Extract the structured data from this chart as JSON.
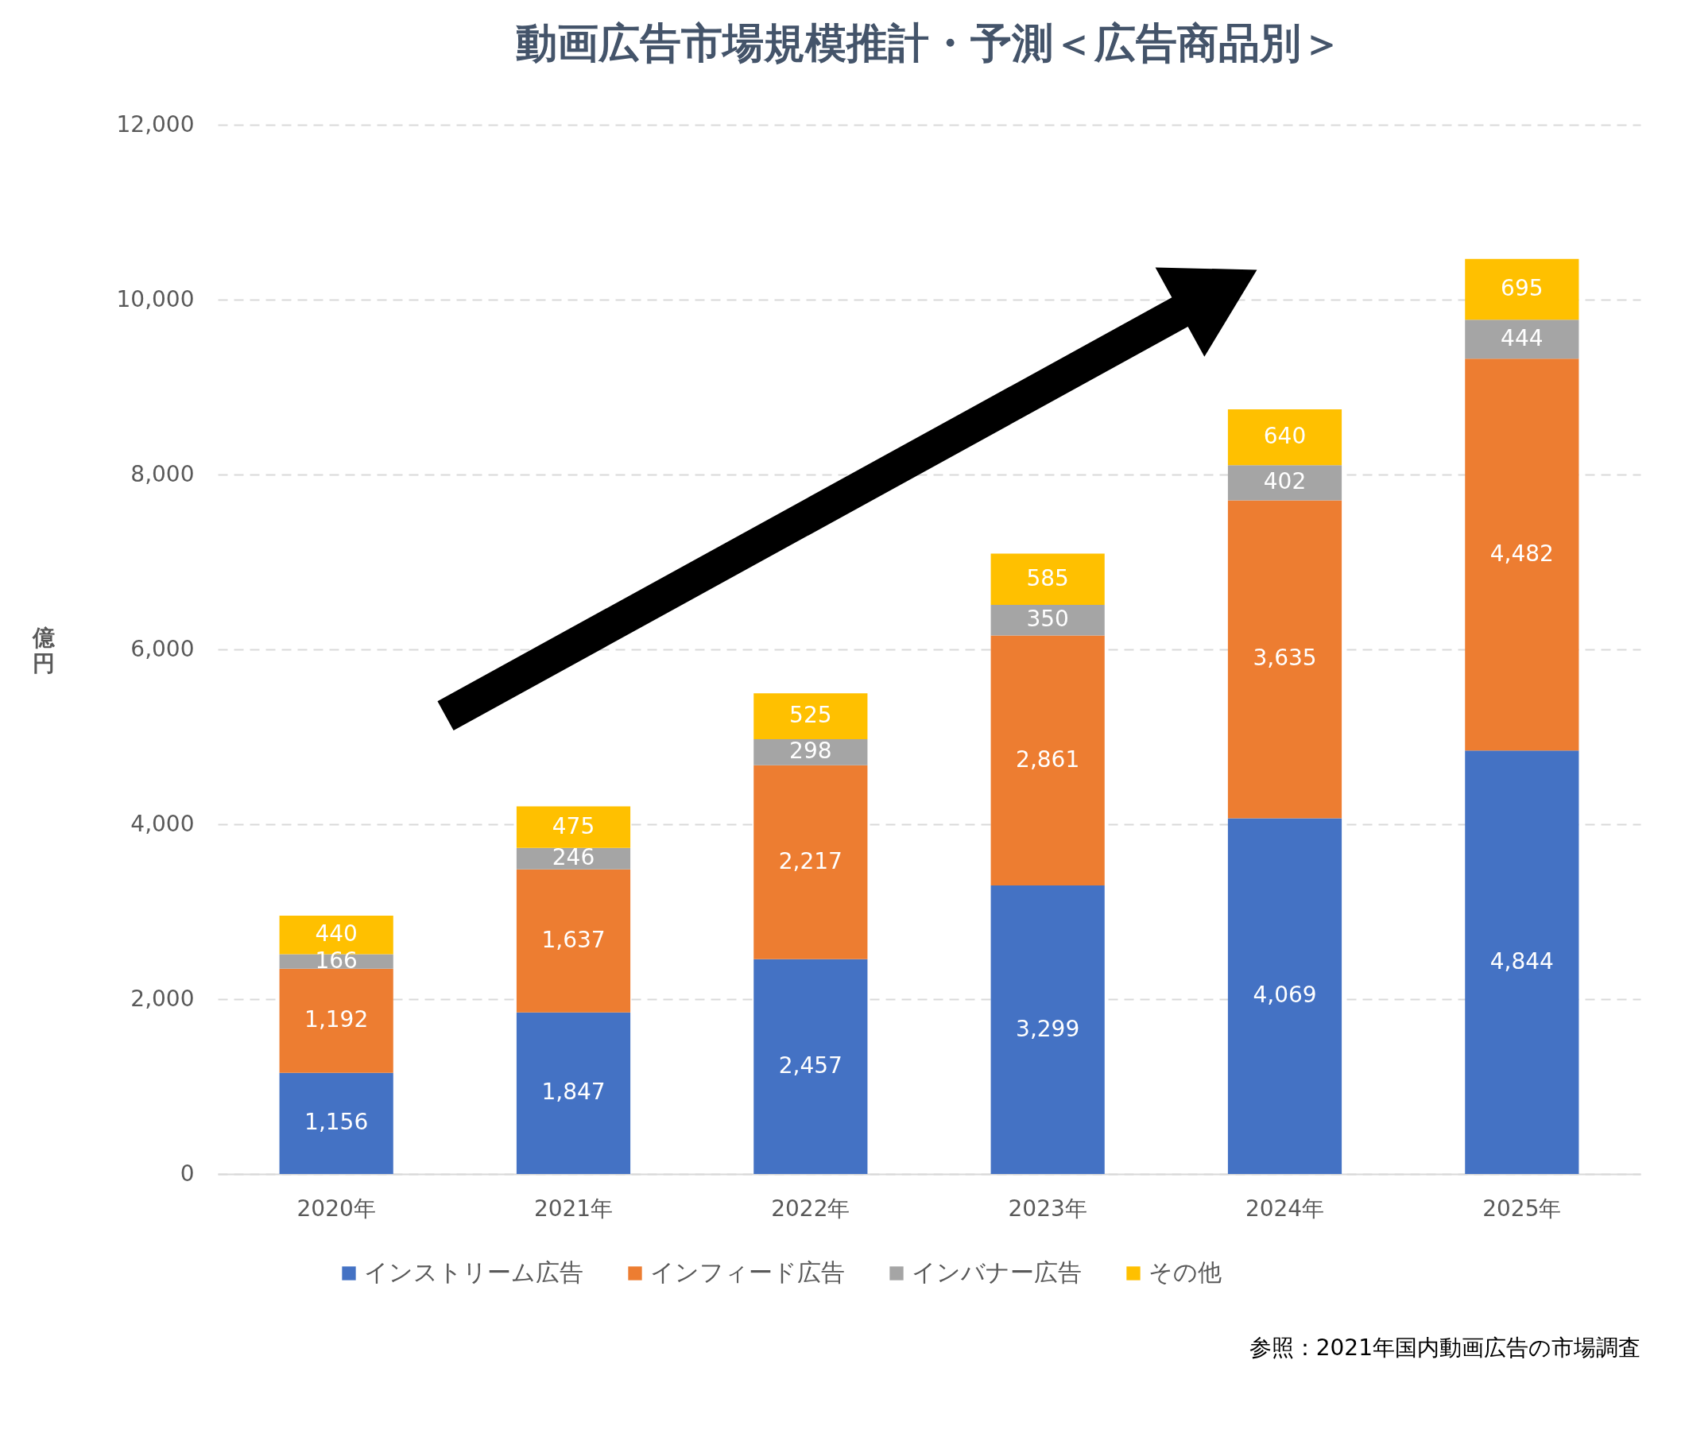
{
  "chart_data": {
    "type": "bar",
    "stacked": true,
    "title": "動画広告市場規模推計・予測＜広告商品別＞",
    "ylabel": "億円",
    "categories": [
      "2020年",
      "2021年",
      "2022年",
      "2023年",
      "2024年",
      "2025年"
    ],
    "series": [
      {
        "name": "インストリーム広告",
        "color": "#4472c4",
        "values": [
          1156,
          1847,
          2457,
          3299,
          4069,
          4844
        ],
        "value_labels": [
          "1,156",
          "1,847",
          "2,457",
          "3,299",
          "4,069",
          "4,844"
        ]
      },
      {
        "name": "インフィード広告",
        "color": "#ed7d31",
        "values": [
          1192,
          1637,
          2217,
          2861,
          3635,
          4482
        ],
        "value_labels": [
          "1,192",
          "1,637",
          "2,217",
          "2,861",
          "3,635",
          "4,482"
        ]
      },
      {
        "name": "インバナー広告",
        "color": "#a5a5a5",
        "values": [
          166,
          246,
          298,
          350,
          402,
          444
        ],
        "value_labels": [
          "166",
          "246",
          "298",
          "350",
          "402",
          "444"
        ]
      },
      {
        "name": "その他",
        "color": "#ffc000",
        "values": [
          440,
          475,
          525,
          585,
          640,
          695
        ],
        "value_labels": [
          "440",
          "475",
          "525",
          "585",
          "640",
          "695"
        ]
      }
    ],
    "ylim": [
      0,
      12000
    ],
    "yticks": [
      0,
      {
        "value": 2000,
        "label": "2,000"
      },
      {
        "value": 4000,
        "label": "4,000"
      },
      {
        "value": 6000,
        "label": "6,000"
      },
      {
        "value": 8000,
        "label": "8,000"
      },
      {
        "value": 10000,
        "label": "10,000"
      },
      {
        "value": 12000,
        "label": "12,000"
      }
    ],
    "grid": "y",
    "legend": "bottom",
    "annotations": [
      "参照：2021年国内動画広告の市場調査"
    ]
  }
}
